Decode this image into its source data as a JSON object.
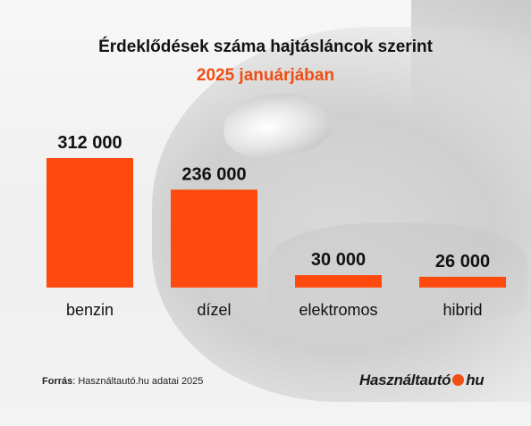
{
  "title": "Érdeklődések száma hajtásláncok szerint",
  "subtitle": "2025 januárjában",
  "chart_data": {
    "type": "bar",
    "categories": [
      "benzin",
      "dízel",
      "elektromos",
      "hibrid"
    ],
    "values": [
      312000,
      236000,
      30000,
      26000
    ],
    "value_labels": [
      "312 000",
      "236 000",
      "30 000",
      "26 000"
    ],
    "title": "Érdeklődések száma hajtásláncok szerint",
    "subtitle": "2025 januárjában",
    "bar_color": "#ff4a0f",
    "ylim": [
      0,
      312000
    ],
    "grid": false
  },
  "source": {
    "label": "Forrás",
    "text": ": Használtautó.hu adatai 2025"
  },
  "logo": {
    "part1": "Használtautó",
    "part2": "hu",
    "dot_color": "#f04e14"
  }
}
